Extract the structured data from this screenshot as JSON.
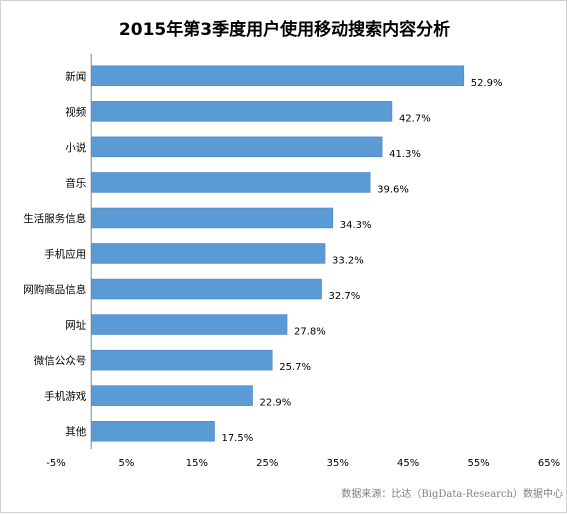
{
  "chart_data": {
    "type": "bar",
    "orientation": "horizontal",
    "title": "2015年第3季度用户使用移动搜索内容分析",
    "categories": [
      "新闻",
      "视频",
      "小说",
      "音乐",
      "生活服务信息",
      "手机应用",
      "网购商品信息",
      "网址",
      "微信公众号",
      "手机游戏",
      "其他"
    ],
    "values": [
      52.9,
      42.7,
      41.3,
      39.6,
      34.3,
      33.2,
      32.7,
      27.8,
      25.7,
      22.9,
      17.5
    ],
    "value_labels": [
      "52.9%",
      "42.7%",
      "41.3%",
      "39.6%",
      "34.3%",
      "33.2%",
      "32.7%",
      "27.8%",
      "25.7%",
      "22.9%",
      "17.5%"
    ],
    "xlabel": "",
    "ylabel": "",
    "xlim": [
      -5,
      65
    ],
    "xticks": [
      -5,
      5,
      15,
      25,
      35,
      45,
      55,
      65
    ],
    "xtick_labels": [
      "-5%",
      "5%",
      "15%",
      "25%",
      "35%",
      "45%",
      "55%",
      "65%"
    ],
    "baseline": 0,
    "grid": false,
    "legend": "none",
    "bar_color": "#5b9bd5",
    "bar_border_color": "#4a86c0"
  },
  "source_note": "数据来源：比达（BigData-Research）数据中心"
}
